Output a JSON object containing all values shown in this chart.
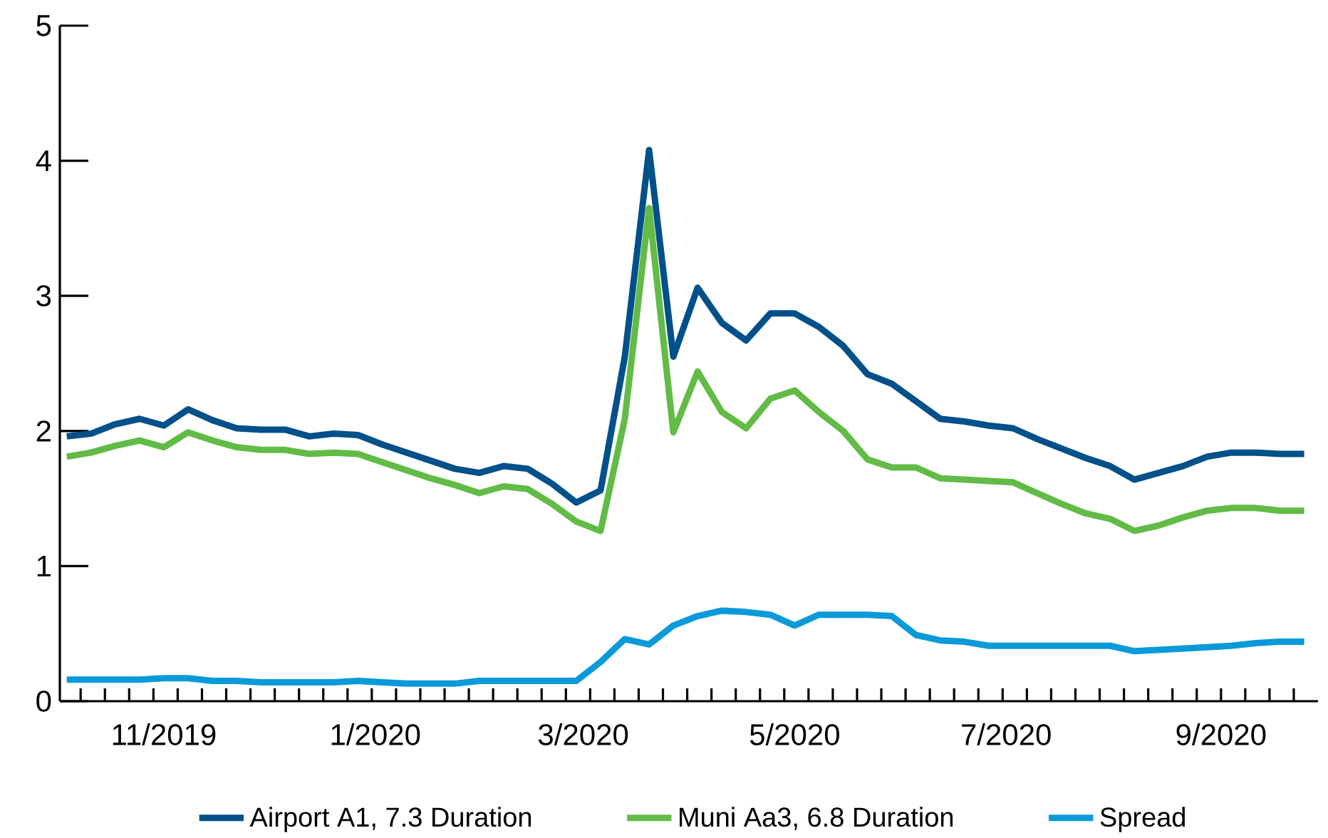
{
  "chart_data": {
    "type": "line",
    "x": [
      "2019-10-04",
      "2019-10-11",
      "2019-10-18",
      "2019-10-25",
      "2019-11-01",
      "2019-11-08",
      "2019-11-15",
      "2019-11-22",
      "2019-11-29",
      "2019-12-06",
      "2019-12-13",
      "2019-12-20",
      "2019-12-27",
      "2020-01-03",
      "2020-01-10",
      "2020-01-17",
      "2020-01-24",
      "2020-01-31",
      "2020-02-07",
      "2020-02-14",
      "2020-02-21",
      "2020-02-28",
      "2020-03-06",
      "2020-03-13",
      "2020-03-20",
      "2020-03-27",
      "2020-04-03",
      "2020-04-10",
      "2020-04-17",
      "2020-04-24",
      "2020-05-01",
      "2020-05-08",
      "2020-05-15",
      "2020-05-22",
      "2020-05-29",
      "2020-06-05",
      "2020-06-12",
      "2020-06-19",
      "2020-06-26",
      "2020-07-03",
      "2020-07-10",
      "2020-07-17",
      "2020-07-24",
      "2020-07-31",
      "2020-08-07",
      "2020-08-14",
      "2020-08-21",
      "2020-08-28",
      "2020-09-04",
      "2020-09-11",
      "2020-09-18",
      "2020-09-25"
    ],
    "series": [
      {
        "name": "Airport A1, 7.3 Duration",
        "color": "#00508a",
        "values": [
          1.96,
          1.98,
          2.05,
          2.09,
          2.04,
          2.16,
          2.08,
          2.02,
          2.01,
          2.01,
          1.96,
          1.98,
          1.97,
          1.9,
          1.84,
          1.78,
          1.72,
          1.69,
          1.74,
          1.72,
          1.61,
          1.47,
          1.56,
          2.55,
          4.08,
          2.55,
          3.06,
          2.8,
          2.67,
          2.87,
          2.87,
          2.77,
          2.63,
          2.42,
          2.35,
          2.22,
          2.09,
          2.07,
          2.04,
          2.02,
          1.94,
          1.87,
          1.8,
          1.74,
          1.64,
          1.69,
          1.74,
          1.81,
          1.84,
          1.84,
          1.83,
          1.83
        ]
      },
      {
        "name": "Muni Aa3, 6.8 Duration",
        "color": "#62bb46",
        "values": [
          1.81,
          1.84,
          1.89,
          1.93,
          1.88,
          1.99,
          1.93,
          1.88,
          1.86,
          1.86,
          1.83,
          1.84,
          1.83,
          1.77,
          1.71,
          1.65,
          1.6,
          1.54,
          1.59,
          1.57,
          1.46,
          1.33,
          1.26,
          2.09,
          3.65,
          1.99,
          2.44,
          2.14,
          2.02,
          2.24,
          2.3,
          2.14,
          2.0,
          1.79,
          1.73,
          1.73,
          1.65,
          1.64,
          1.63,
          1.62,
          1.54,
          1.46,
          1.39,
          1.35,
          1.26,
          1.3,
          1.36,
          1.41,
          1.43,
          1.43,
          1.41,
          1.41
        ]
      },
      {
        "name": "Spread",
        "color": "#0a9ad9",
        "values": [
          0.16,
          0.16,
          0.16,
          0.16,
          0.17,
          0.17,
          0.15,
          0.15,
          0.14,
          0.14,
          0.14,
          0.14,
          0.15,
          0.14,
          0.13,
          0.13,
          0.13,
          0.15,
          0.15,
          0.15,
          0.15,
          0.15,
          0.29,
          0.46,
          0.42,
          0.56,
          0.63,
          0.67,
          0.66,
          0.64,
          0.56,
          0.64,
          0.64,
          0.64,
          0.63,
          0.49,
          0.45,
          0.44,
          0.41,
          0.41,
          0.41,
          0.41,
          0.41,
          0.41,
          0.37,
          0.38,
          0.39,
          0.4,
          0.41,
          0.43,
          0.44,
          0.44
        ]
      }
    ],
    "xlim": [
      "2019-10-02",
      "2020-09-29"
    ],
    "xticks": [
      {
        "value": "2019-11-01",
        "label": "11/2019"
      },
      {
        "value": "2020-01-01",
        "label": "1/2020"
      },
      {
        "value": "2020-03-01",
        "label": "3/2020"
      },
      {
        "value": "2020-05-01",
        "label": "5/2020"
      },
      {
        "value": "2020-07-01",
        "label": "7/2020"
      },
      {
        "value": "2020-09-01",
        "label": "9/2020"
      },
      {
        "value": "2019-10-08",
        "label": null
      },
      {
        "value": "2019-10-15",
        "label": null
      },
      {
        "value": "2019-10-22",
        "label": null
      },
      {
        "value": "2019-10-29",
        "label": null
      },
      {
        "value": "2019-11-05",
        "label": null
      },
      {
        "value": "2019-11-12",
        "label": null
      },
      {
        "value": "2019-11-19",
        "label": null
      },
      {
        "value": "2019-11-26",
        "label": null
      },
      {
        "value": "2019-12-03",
        "label": null
      },
      {
        "value": "2019-12-10",
        "label": null
      },
      {
        "value": "2019-12-17",
        "label": null
      },
      {
        "value": "2019-12-24",
        "label": null
      },
      {
        "value": "2019-12-31",
        "label": null
      },
      {
        "value": "2020-01-07",
        "label": null
      },
      {
        "value": "2020-01-14",
        "label": null
      },
      {
        "value": "2020-01-21",
        "label": null
      },
      {
        "value": "2020-01-28",
        "label": null
      },
      {
        "value": "2020-02-04",
        "label": null
      },
      {
        "value": "2020-02-11",
        "label": null
      },
      {
        "value": "2020-02-18",
        "label": null
      },
      {
        "value": "2020-02-25",
        "label": null
      },
      {
        "value": "2020-03-03",
        "label": null
      },
      {
        "value": "2020-03-10",
        "label": null
      },
      {
        "value": "2020-03-17",
        "label": null
      },
      {
        "value": "2020-03-24",
        "label": null
      },
      {
        "value": "2020-03-31",
        "label": null
      },
      {
        "value": "2020-04-07",
        "label": null
      },
      {
        "value": "2020-04-14",
        "label": null
      },
      {
        "value": "2020-04-21",
        "label": null
      },
      {
        "value": "2020-04-28",
        "label": null
      },
      {
        "value": "2020-05-05",
        "label": null
      },
      {
        "value": "2020-05-12",
        "label": null
      },
      {
        "value": "2020-05-19",
        "label": null
      },
      {
        "value": "2020-05-26",
        "label": null
      },
      {
        "value": "2020-06-02",
        "label": null
      },
      {
        "value": "2020-06-09",
        "label": null
      },
      {
        "value": "2020-06-16",
        "label": null
      },
      {
        "value": "2020-06-23",
        "label": null
      },
      {
        "value": "2020-06-30",
        "label": null
      },
      {
        "value": "2020-07-07",
        "label": null
      },
      {
        "value": "2020-07-14",
        "label": null
      },
      {
        "value": "2020-07-21",
        "label": null
      },
      {
        "value": "2020-07-28",
        "label": null
      },
      {
        "value": "2020-08-04",
        "label": null
      },
      {
        "value": "2020-08-11",
        "label": null
      },
      {
        "value": "2020-08-18",
        "label": null
      },
      {
        "value": "2020-08-25",
        "label": null
      },
      {
        "value": "2020-09-01",
        "label": null
      },
      {
        "value": "2020-09-08",
        "label": null
      },
      {
        "value": "2020-09-15",
        "label": null
      },
      {
        "value": "2020-09-22",
        "label": null
      }
    ],
    "ylim": [
      0,
      5
    ],
    "yticks": [
      0,
      1,
      2,
      3,
      4,
      5
    ],
    "legend": "bottom",
    "grid": false,
    "marker": "none",
    "line_style": "solid"
  }
}
